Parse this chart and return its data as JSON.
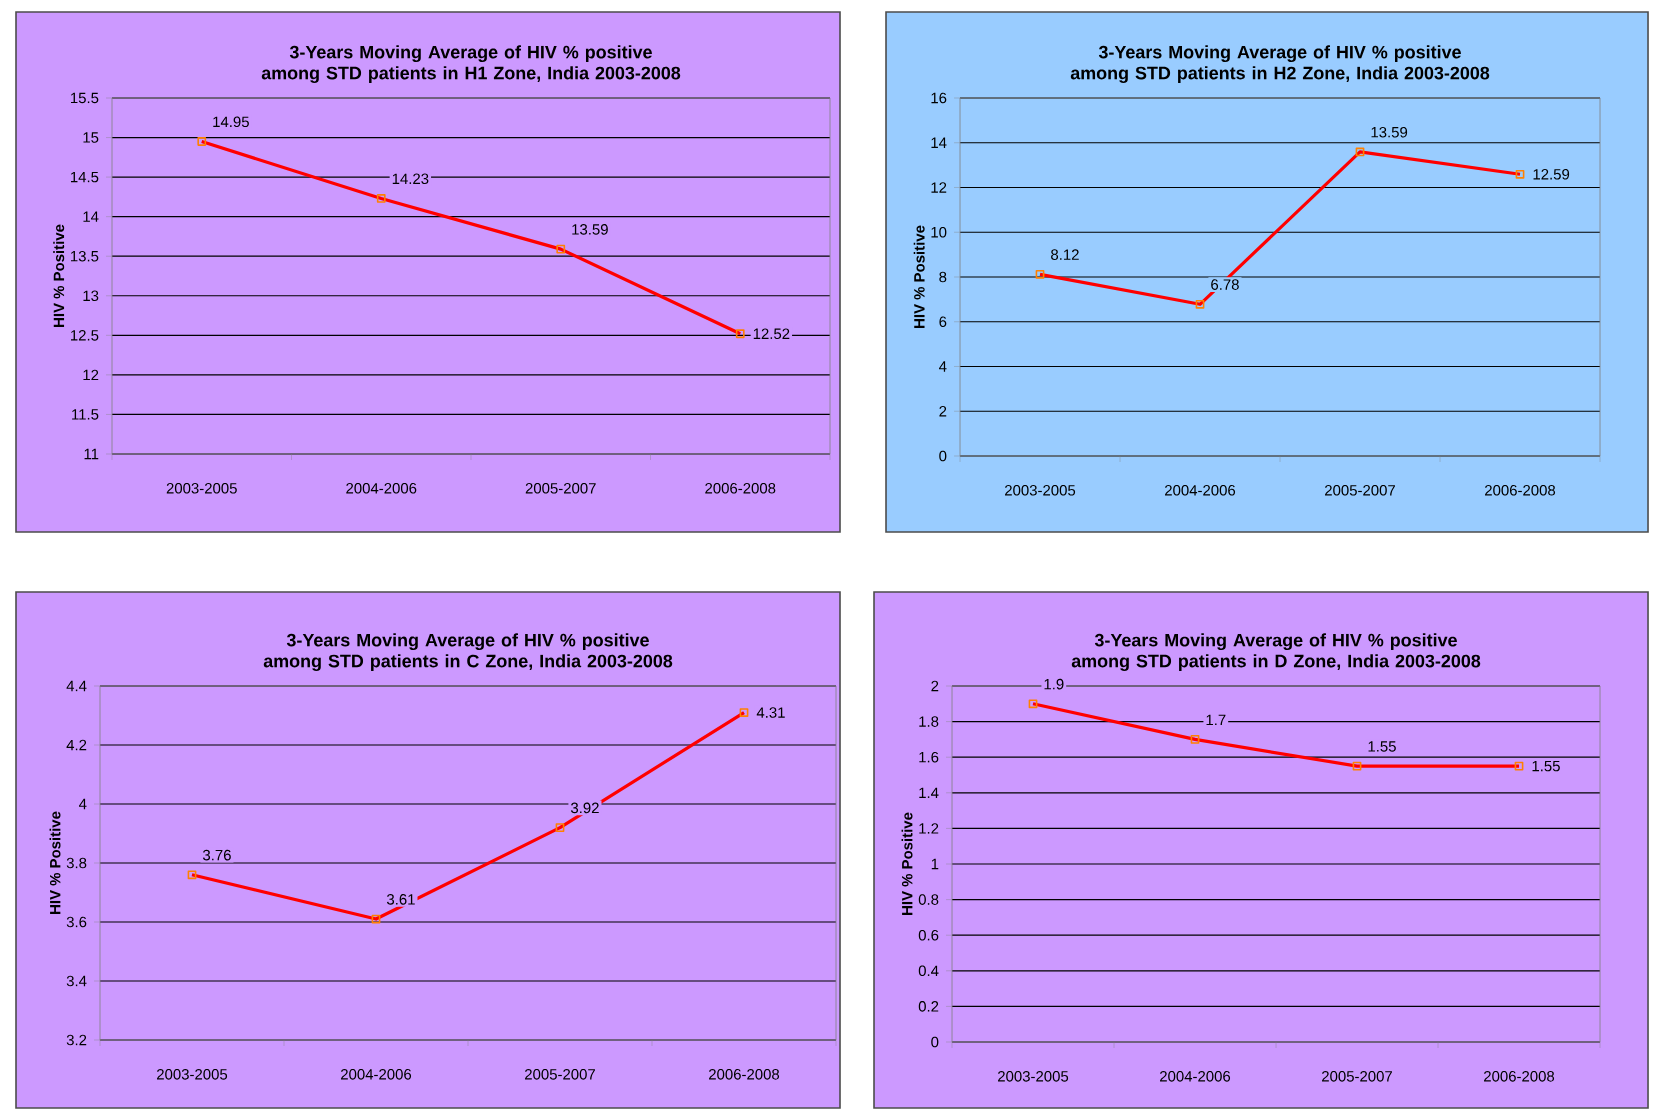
{
  "chart_data": [
    {
      "type": "line",
      "title": "3-Years Moving Average of HIV % positive among STD patients in H1 Zone, India 2003-2008",
      "ylabel": "HIV % Positive",
      "categories": [
        "2003-2005",
        "2004-2006",
        "2005-2007",
        "2006-2008"
      ],
      "series": [
        {
          "color": "#ff0000",
          "values": [
            14.95,
            14.23,
            13.59,
            12.52
          ]
        }
      ],
      "ylim": [
        11,
        15.5
      ],
      "yticks": [
        11,
        11.5,
        12,
        12.5,
        13,
        13.5,
        14,
        14.5,
        15,
        15.5
      ],
      "grid": "y",
      "marker": "square",
      "data_labels": true
    },
    {
      "type": "line",
      "title": "3-Years Moving Average of HIV % positive among STD patients in H2 Zone, India 2003-2008",
      "ylabel": "HIV % Positive",
      "categories": [
        "2003-2005",
        "2004-2006",
        "2005-2007",
        "2006-2008"
      ],
      "series": [
        {
          "color": "#ff0000",
          "values": [
            8.12,
            6.78,
            13.59,
            12.59
          ]
        }
      ],
      "ylim": [
        0,
        16
      ],
      "yticks": [
        0,
        2,
        4,
        6,
        8,
        10,
        12,
        14,
        16
      ],
      "grid": "y",
      "marker": "square",
      "data_labels": true
    },
    {
      "type": "line",
      "title": "3-Years Moving Average of HIV % positive among STD patients in C Zone, India 2003-2008",
      "ylabel": "HIV % Positive",
      "categories": [
        "2003-2005",
        "2004-2006",
        "2005-2007",
        "2006-2008"
      ],
      "series": [
        {
          "color": "#ff0000",
          "values": [
            3.76,
            3.61,
            3.92,
            4.31
          ]
        }
      ],
      "ylim": [
        3.2,
        4.4
      ],
      "yticks": [
        3.2,
        3.4,
        3.6,
        3.8,
        4,
        4.2,
        4.4
      ],
      "grid": "y",
      "marker": "square",
      "data_labels": true
    },
    {
      "type": "line",
      "title": "3-Years Moving Average of HIV % positive among STD patients in D Zone, India 2003-2008",
      "ylabel": "HIV % Positive",
      "categories": [
        "2003-2005",
        "2004-2006",
        "2005-2007",
        "2006-2008"
      ],
      "series": [
        {
          "color": "#ff0000",
          "values": [
            1.9,
            1.7,
            1.55,
            1.55
          ]
        }
      ],
      "ylim": [
        0,
        2
      ],
      "yticks": [
        0,
        0.2,
        0.4,
        0.6,
        0.8,
        1,
        1.2,
        1.4,
        1.6,
        1.8,
        2
      ],
      "grid": "y",
      "marker": "square",
      "data_labels": true
    }
  ]
}
